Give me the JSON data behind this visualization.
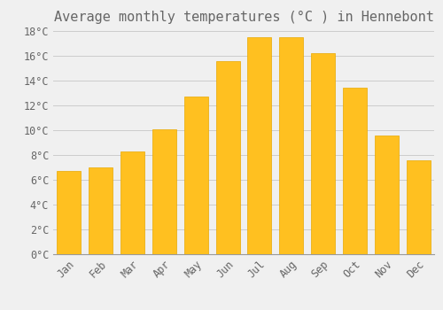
{
  "title": "Average monthly temperatures (°C ) in Hennebont",
  "months": [
    "Jan",
    "Feb",
    "Mar",
    "Apr",
    "May",
    "Jun",
    "Jul",
    "Aug",
    "Sep",
    "Oct",
    "Nov",
    "Dec"
  ],
  "temperatures": [
    6.7,
    7.0,
    8.3,
    10.1,
    12.7,
    15.6,
    17.5,
    17.5,
    16.2,
    13.4,
    9.6,
    7.6
  ],
  "bar_color": "#FFC020",
  "bar_edge_color": "#E8A800",
  "background_color": "#F0F0F0",
  "grid_color": "#CCCCCC",
  "text_color": "#666666",
  "ylim": [
    0,
    18
  ],
  "ytick_step": 2,
  "title_fontsize": 11,
  "tick_fontsize": 8.5,
  "font_family": "monospace",
  "bar_width": 0.75
}
